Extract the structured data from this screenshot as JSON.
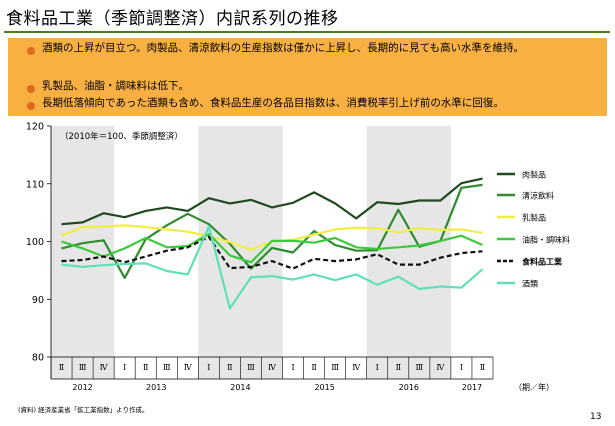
{
  "title": "食料品工業（季節調整済）内訳系列の推移",
  "notes": [
    "酒類の上昇が目立つ。肉製品、清涼飲料の生産指数は僅かに上昇し、長期的に見ても高い水準を維持。",
    "乳製品、油脂・調味料は低下。",
    "長期低落傾向であった酒類も含め、食料品生産の各品目指数は、消費税率引上げ前の水準に回復。"
  ],
  "source": "(資料) 経済産業省「鉱工業指数」より作成。",
  "page_number": "13",
  "chart_data": {
    "type": "line",
    "annotation": "（2010年＝100、季節調整済）",
    "xlabel": "（期／年）",
    "ylim": [
      80,
      120
    ],
    "yticks": [
      80,
      90,
      100,
      110,
      120
    ],
    "quarters": [
      "Ⅱ",
      "Ⅲ",
      "Ⅳ",
      "Ⅰ",
      "Ⅱ",
      "Ⅲ",
      "Ⅳ",
      "Ⅰ",
      "Ⅱ",
      "Ⅲ",
      "Ⅳ",
      "Ⅰ",
      "Ⅱ",
      "Ⅲ",
      "Ⅳ",
      "Ⅰ",
      "Ⅱ",
      "Ⅲ",
      "Ⅳ",
      "Ⅰ",
      "Ⅱ"
    ],
    "years": [
      {
        "label": "2012",
        "start": 0,
        "end": 2
      },
      {
        "label": "2013",
        "start": 3,
        "end": 6
      },
      {
        "label": "2014",
        "start": 7,
        "end": 10
      },
      {
        "label": "2015",
        "start": 11,
        "end": 14
      },
      {
        "label": "2016",
        "start": 15,
        "end": 18
      },
      {
        "label": "2017",
        "start": 19,
        "end": 20
      }
    ],
    "shaded_years": [
      "2012",
      "2014",
      "2016"
    ],
    "series": [
      {
        "name": "肉製品",
        "color": "#1f4a1f",
        "dash": false,
        "bold": false,
        "values": [
          103.0,
          103.3,
          104.9,
          104.2,
          105.3,
          105.9,
          105.3,
          107.5,
          106.6,
          107.2,
          105.9,
          106.7,
          108.5,
          106.6,
          104.0,
          106.8,
          106.5,
          107.1,
          107.1,
          110.1,
          110.9
        ]
      },
      {
        "name": "清涼飲料",
        "color": "#2e8b2e",
        "dash": false,
        "bold": false,
        "values": [
          98.8,
          99.7,
          100.2,
          93.7,
          100.4,
          102.8,
          104.8,
          103.0,
          99.6,
          95.3,
          98.9,
          98.1,
          101.8,
          99.4,
          98.4,
          98.5,
          105.5,
          99.1,
          100.1,
          109.3,
          109.8
        ]
      },
      {
        "name": "乳製品",
        "color": "#f0ee40",
        "dash": false,
        "bold": false,
        "values": [
          101.0,
          102.5,
          102.6,
          102.8,
          102.5,
          102.1,
          101.7,
          100.9,
          99.9,
          98.6,
          100.0,
          100.3,
          101.2,
          102.1,
          102.4,
          102.3,
          101.6,
          102.3,
          102.0,
          102.1,
          101.5
        ]
      },
      {
        "name": "油脂・調味料",
        "color": "#3ec83e",
        "dash": false,
        "bold": false,
        "values": [
          100.0,
          98.8,
          97.4,
          98.8,
          100.6,
          99.0,
          99.2,
          101.3,
          97.6,
          96.4,
          100.1,
          100.1,
          99.8,
          100.6,
          99.0,
          98.7,
          99.0,
          99.3,
          100.1,
          101.0,
          99.4
        ]
      },
      {
        "name": "食料品工業",
        "color": "#111111",
        "dash": true,
        "bold": true,
        "values": [
          96.6,
          96.8,
          97.4,
          96.4,
          97.4,
          98.4,
          99.0,
          100.8,
          95.4,
          95.6,
          96.6,
          95.3,
          97.0,
          96.6,
          96.9,
          97.8,
          96.0,
          96.0,
          97.2,
          98.0,
          98.3
        ]
      },
      {
        "name": "酒類",
        "color": "#5fe0b8",
        "dash": false,
        "bold": false,
        "values": [
          96.0,
          95.6,
          95.9,
          96.1,
          96.2,
          94.9,
          94.3,
          102.6,
          88.4,
          93.8,
          94.0,
          93.4,
          94.3,
          93.3,
          94.3,
          92.5,
          93.9,
          91.8,
          92.2,
          92.0,
          95.2
        ]
      }
    ]
  }
}
